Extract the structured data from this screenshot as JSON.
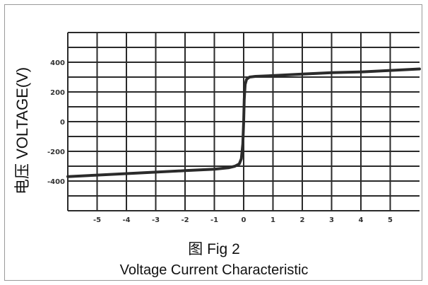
{
  "figure": {
    "fig_label": "图 Fig 2",
    "title": "Voltage Current Characteristic"
  },
  "colors": {
    "curve": "#2b2b2b",
    "grid": "#2a2a2a",
    "background": "#ffffff"
  },
  "chart_data": {
    "type": "line",
    "title": "Voltage Current Characteristic",
    "xlabel": "",
    "ylabel": "电压 VOLTAGE(V)",
    "xlim": [
      -6,
      6
    ],
    "ylim": [
      -600,
      600
    ],
    "grid": true,
    "x_ticks": [
      -5,
      -4,
      -3,
      -2,
      -1,
      0,
      1,
      2,
      3,
      4,
      5
    ],
    "x_tick_labels": [
      "-5",
      "-4",
      "-3",
      "-2",
      "-1",
      "0",
      "1",
      "2",
      "3",
      "4",
      "5"
    ],
    "y_ticks": [
      400,
      200,
      0,
      -200,
      -400
    ],
    "y_tick_labels": [
      "400",
      "200",
      "0",
      "-200",
      "-400"
    ],
    "series": [
      {
        "x": [
          -6.0,
          -5.0,
          -4.0,
          -3.0,
          -2.0,
          -1.0,
          -0.5,
          -0.3,
          -0.15,
          -0.08,
          -0.03,
          0.0,
          0.02,
          0.05,
          0.1,
          0.2,
          0.4,
          1.0,
          2.0,
          3.0,
          4.0,
          5.0,
          6.0
        ],
        "y": [
          -370,
          -360,
          -350,
          -340,
          -330,
          -320,
          -310,
          -300,
          -285,
          -250,
          -150,
          0,
          150,
          250,
          285,
          300,
          305,
          310,
          320,
          330,
          335,
          345,
          355
        ]
      }
    ]
  }
}
